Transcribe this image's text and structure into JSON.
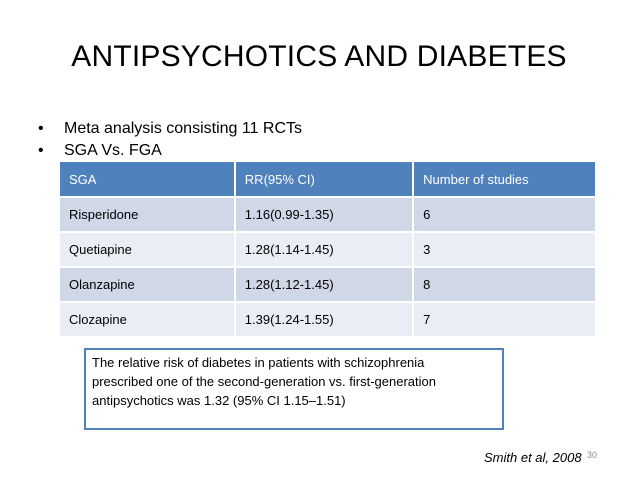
{
  "slide": {
    "title": "ANTIPSYCHOTICS AND DIABETES",
    "bullets": [
      "Meta analysis consisting 11 RCTs",
      "SGA Vs. FGA"
    ],
    "bullet_glyph": "•"
  },
  "table": {
    "headers": [
      "SGA",
      "RR(95% CI)",
      "Number of studies"
    ],
    "rows": [
      [
        "Risperidone",
        "1.16(0.99-1.35)",
        "6"
      ],
      [
        "Quetiapine",
        "1.28(1.14-1.45)",
        "3"
      ],
      [
        "Olanzapine",
        "1.28(1.12-1.45)",
        "8"
      ],
      [
        "Clozapine",
        "1.39(1.24-1.55)",
        "7"
      ]
    ],
    "colors": {
      "header_bg": "#4f81bd",
      "row_bg_a": "#d0d8e8",
      "row_bg_b": "#e9edf4"
    }
  },
  "note": {
    "lines": [
      "The relative risk of diabetes in patients with schizophrenia",
      "prescribed one of the second-generation vs. first-generation",
      "antipsychotics was 1.32 (95% CI 1.15–1.51)"
    ]
  },
  "footer": {
    "citation": "Smith et al, 2008",
    "page_number": "30"
  }
}
